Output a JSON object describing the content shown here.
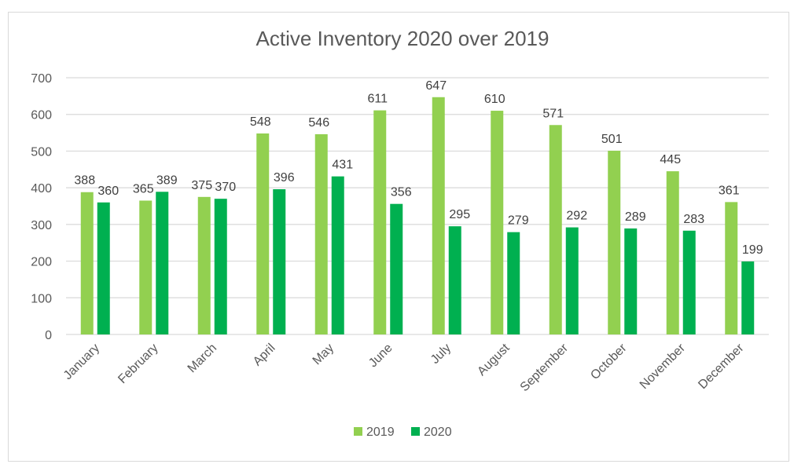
{
  "chart_data": {
    "type": "bar",
    "title": "Active Inventory 2020 over 2019",
    "xlabel": "",
    "ylabel": "",
    "ylim": [
      0,
      700
    ],
    "yticks": [
      0,
      100,
      200,
      300,
      400,
      500,
      600,
      700
    ],
    "grid": true,
    "legend_position": "bottom",
    "categories": [
      "January",
      "February",
      "March",
      "April",
      "May",
      "June",
      "July",
      "August",
      "September",
      "October",
      "November",
      "December"
    ],
    "series": [
      {
        "name": "2019",
        "color": "#92d050",
        "values": [
          388,
          365,
          375,
          548,
          546,
          611,
          647,
          610,
          571,
          501,
          445,
          361
        ]
      },
      {
        "name": "2020",
        "color": "#00b050",
        "values": [
          360,
          389,
          370,
          396,
          431,
          356,
          295,
          279,
          292,
          289,
          283,
          199
        ]
      }
    ],
    "data_labels": true
  }
}
